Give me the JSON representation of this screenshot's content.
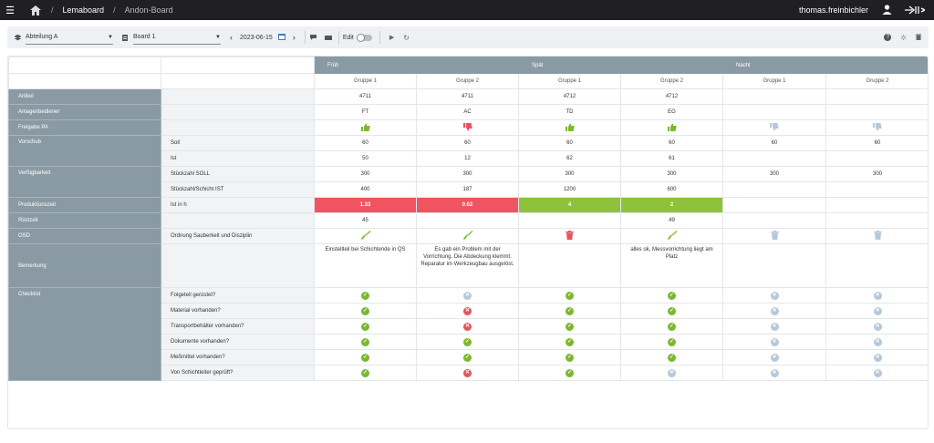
{
  "topbar": {
    "breadcrumb": [
      "Lemaboard",
      "Andon-Board"
    ],
    "user": "thomas.freinbichler"
  },
  "toolbar": {
    "department": "Abteilung A",
    "board": "Board 1",
    "date": "2023-06-15",
    "edit_label": "Edit"
  },
  "colors": {
    "header": "#8a9aa4",
    "red": "#ef5460",
    "green": "#8fc23b",
    "na": "#b5c8dc"
  },
  "shifts": [
    "Früh",
    "Spät",
    "Nacht"
  ],
  "groups": [
    "Gruppe 1",
    "Gruppe 2",
    "Gruppe 1",
    "Gruppe 2",
    "Gruppe 1",
    "Gruppe 2"
  ],
  "rows": {
    "artikel": {
      "label": "Artikel",
      "values": [
        "4711",
        "4711",
        "4712",
        "4712",
        "",
        ""
      ]
    },
    "anlagenbediener": {
      "label": "Anlagenbediener",
      "values": [
        "FT",
        "AC",
        "TD",
        "EG",
        "",
        ""
      ]
    },
    "freigabe": {
      "label": "Freigabe PA"
    },
    "vorschub": {
      "label": "Vorschub",
      "soll_label": "Soll",
      "ist_label": "Ist",
      "soll": [
        "60",
        "60",
        "60",
        "60",
        "60",
        "60"
      ],
      "ist": [
        "50",
        "12",
        "62",
        "61",
        "",
        ""
      ]
    },
    "verfuegbarkeit": {
      "label": "Verfügbarkeit",
      "soll_label": "Stückzahl SOLL",
      "ist_label": "Stückzahl/Schicht IST",
      "soll": [
        "300",
        "300",
        "300",
        "300",
        "300",
        "300"
      ],
      "ist": [
        "400",
        "187",
        "1200",
        "600",
        "",
        ""
      ]
    },
    "produktionszeit": {
      "label": "Produktionszeit",
      "sub": "Ist in h",
      "values": [
        "1.33",
        "0.62",
        "4",
        "2",
        "",
        ""
      ]
    },
    "ruestzeit": {
      "label": "Rüstzeit",
      "values": [
        "45",
        "",
        "",
        "49",
        "",
        ""
      ]
    },
    "osd": {
      "label": "OSD",
      "sub": "Ordnung Sauberkeit und Disziplin"
    },
    "bemerkung": {
      "label": "Bemerkung",
      "values": [
        "Einstellteil bei Schichtende in QS",
        "Es gab ein Problem mit der Vorrichtung. Die Abdeckung klemmt. Reparatur im Werkzeugbau ausgelöst.",
        "",
        "alles ok, Messvorrichtung liegt am Platz",
        "",
        ""
      ]
    }
  },
  "checklist": {
    "label": "Checklist",
    "items": [
      "Folgeteil gerüstet?",
      "Material vorhanden?",
      "Transportbehälter vorhanden?",
      "Dokumente vorhanden?",
      "Meßmittel vorhanden?",
      "Von Schichtleiter geprüft?"
    ]
  }
}
